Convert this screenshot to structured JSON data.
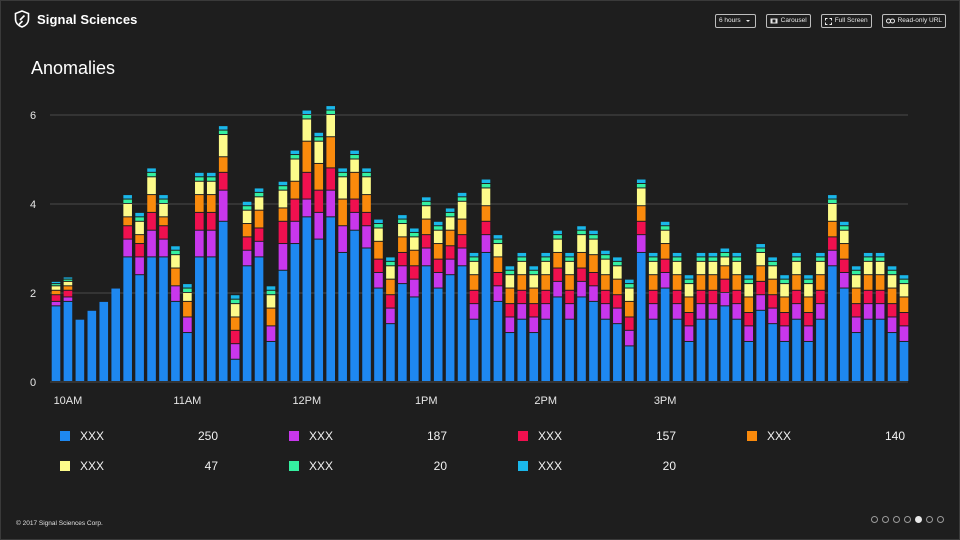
{
  "header": {
    "brand": "Signal Sciences",
    "toolbar": {
      "time_range": "6 hours",
      "carousel": "Carousel",
      "full_screen": "Full Screen",
      "read_only_url": "Read-only URL"
    }
  },
  "title": "Anomalies",
  "chart_data": {
    "type": "bar",
    "stacked": true,
    "title": "Anomalies",
    "xlabel": "",
    "ylabel": "",
    "ylim": [
      0,
      6
    ],
    "yticks": [
      0,
      2,
      4,
      6
    ],
    "grid": true,
    "x_ticks": [
      {
        "label": "10AM",
        "index": 1
      },
      {
        "label": "11AM",
        "index": 11
      },
      {
        "label": "12PM",
        "index": 21
      },
      {
        "label": "1PM",
        "index": 31
      },
      {
        "label": "2PM",
        "index": 41
      },
      {
        "label": "3PM",
        "index": 51
      }
    ],
    "series": [
      {
        "name": "XXX",
        "color": "#1e88f0",
        "values": [
          1.7,
          1.8,
          1.4,
          1.6,
          1.8,
          2.1,
          2.8,
          2.4,
          2.8,
          2.8,
          1.8,
          1.1,
          2.8,
          2.8,
          3.6,
          0.5,
          2.6,
          2.8,
          0.9,
          2.5,
          3.1,
          3.7,
          3.2,
          3.7,
          2.9,
          3.4,
          3.0,
          2.1,
          1.3,
          2.2,
          1.9,
          2.6,
          2.1,
          2.4,
          2.6,
          1.4,
          2.9,
          1.8,
          1.1,
          1.4,
          1.1,
          1.4,
          1.9,
          1.4,
          1.9,
          1.8,
          1.4,
          1.3,
          0.8,
          2.9,
          1.4,
          2.1,
          1.4,
          0.9,
          1.4,
          1.4,
          1.7,
          1.4,
          0.9,
          1.6,
          1.3,
          0.9,
          1.4,
          0.9,
          1.4,
          2.6,
          2.1,
          1.1,
          1.4,
          1.4,
          1.1,
          0.9
        ]
      },
      {
        "name": "XXX",
        "color": "#c837ec",
        "values": [
          0.1,
          0.1,
          0,
          0,
          0,
          0,
          0.4,
          0.4,
          0.6,
          0.4,
          0.35,
          0.35,
          0.6,
          0.6,
          0.7,
          0.35,
          0.35,
          0.35,
          0.35,
          0.6,
          0.5,
          0.4,
          0.6,
          0.6,
          0.6,
          0.4,
          0.5,
          0.35,
          0.35,
          0.4,
          0.4,
          0.4,
          0.35,
          0.35,
          0.4,
          0.35,
          0.4,
          0.35,
          0.35,
          0.35,
          0.35,
          0.35,
          0.35,
          0.35,
          0.35,
          0.35,
          0.35,
          0.35,
          0.35,
          0.4,
          0.35,
          0.35,
          0.35,
          0.35,
          0.35,
          0.35,
          0.3,
          0.35,
          0.35,
          0.35,
          0.35,
          0.35,
          0.35,
          0.35,
          0.35,
          0.35,
          0.35,
          0.35,
          0.35,
          0.35,
          0.35,
          0.35
        ]
      },
      {
        "name": "XXX",
        "color": "#f0104f",
        "values": [
          0.15,
          0.15,
          0,
          0,
          0,
          0,
          0.3,
          0.3,
          0.4,
          0.3,
          0,
          0,
          0.4,
          0.4,
          0.4,
          0.3,
          0.3,
          0.3,
          0,
          0.5,
          0.5,
          0.6,
          0.5,
          0.5,
          0,
          0.3,
          0.3,
          0.3,
          0.3,
          0.3,
          0.3,
          0.3,
          0.3,
          0.3,
          0.3,
          0.3,
          0.3,
          0.3,
          0.3,
          0.3,
          0.3,
          0.3,
          0.3,
          0.3,
          0.3,
          0.3,
          0.3,
          0.3,
          0.3,
          0.3,
          0.3,
          0.3,
          0.3,
          0.3,
          0.3,
          0.3,
          0.3,
          0.3,
          0.3,
          0.3,
          0.3,
          0.3,
          0.3,
          0.3,
          0.3,
          0.3,
          0.3,
          0.3,
          0.3,
          0.3,
          0.3,
          0.3
        ]
      },
      {
        "name": "XXX",
        "color": "#fa8a0c",
        "values": [
          0.1,
          0.1,
          0,
          0,
          0,
          0,
          0.2,
          0.2,
          0.4,
          0.2,
          0.4,
          0.35,
          0.4,
          0.4,
          0.35,
          0.3,
          0.3,
          0.4,
          0.4,
          0.3,
          0.4,
          0.7,
          0.6,
          0.7,
          0.6,
          0.6,
          0.4,
          0.4,
          0.35,
          0.35,
          0.35,
          0.35,
          0.35,
          0.35,
          0.35,
          0.35,
          0.35,
          0.35,
          0.35,
          0.35,
          0.35,
          0.35,
          0.35,
          0.35,
          0.35,
          0.4,
          0.35,
          0.35,
          0.35,
          0.35,
          0.35,
          0.35,
          0.35,
          0.35,
          0.35,
          0.35,
          0.3,
          0.35,
          0.35,
          0.35,
          0.35,
          0.35,
          0.35,
          0.35,
          0.35,
          0.35,
          0.35,
          0.35,
          0.35,
          0.35,
          0.35,
          0.35
        ]
      },
      {
        "name": "XXX",
        "color": "#fdfb8a",
        "values": [
          0.1,
          0.1,
          0,
          0,
          0,
          0,
          0.3,
          0.3,
          0.4,
          0.3,
          0.3,
          0.2,
          0.3,
          0.3,
          0.5,
          0.3,
          0.3,
          0.3,
          0.3,
          0.4,
          0.5,
          0.5,
          0.5,
          0.5,
          0.5,
          0.3,
          0.4,
          0.3,
          0.3,
          0.3,
          0.3,
          0.3,
          0.3,
          0.3,
          0.4,
          0.3,
          0.4,
          0.3,
          0.3,
          0.3,
          0.3,
          0.3,
          0.3,
          0.3,
          0.4,
          0.35,
          0.35,
          0.3,
          0.3,
          0.4,
          0.3,
          0.3,
          0.3,
          0.3,
          0.3,
          0.3,
          0.2,
          0.3,
          0.3,
          0.3,
          0.3,
          0.3,
          0.3,
          0.3,
          0.3,
          0.4,
          0.3,
          0.3,
          0.3,
          0.3,
          0.3,
          0.3
        ]
      },
      {
        "name": "XXX",
        "color": "#35f0a0",
        "values": [
          0.05,
          0.05,
          0,
          0,
          0,
          0,
          0.1,
          0.1,
          0.1,
          0.1,
          0.1,
          0.1,
          0.1,
          0.1,
          0.1,
          0.1,
          0.1,
          0.1,
          0.1,
          0.1,
          0.1,
          0.1,
          0.1,
          0.1,
          0.1,
          0.1,
          0.1,
          0.1,
          0.1,
          0.1,
          0.1,
          0.1,
          0.1,
          0.1,
          0.1,
          0.1,
          0.1,
          0.1,
          0.1,
          0.1,
          0.1,
          0.1,
          0.1,
          0.1,
          0.1,
          0.1,
          0.1,
          0.1,
          0.1,
          0.1,
          0.1,
          0.1,
          0.1,
          0.1,
          0.1,
          0.1,
          0.1,
          0.1,
          0.1,
          0.1,
          0.1,
          0.1,
          0.1,
          0.1,
          0.1,
          0.1,
          0.1,
          0.1,
          0.1,
          0.1,
          0.1,
          0.1
        ]
      },
      {
        "name": "XXX",
        "color": "#1ab7ea",
        "values": [
          0.05,
          0.05,
          0,
          0,
          0,
          0,
          0.1,
          0.1,
          0.1,
          0.1,
          0.1,
          0.1,
          0.1,
          0.1,
          0.1,
          0.1,
          0.1,
          0.1,
          0.1,
          0.1,
          0.1,
          0.1,
          0.1,
          0.1,
          0.1,
          0.1,
          0.1,
          0.1,
          0.1,
          0.1,
          0.1,
          0.1,
          0.1,
          0.1,
          0.1,
          0.1,
          0.1,
          0.1,
          0.1,
          0.1,
          0.1,
          0.1,
          0.1,
          0.1,
          0.1,
          0.1,
          0.1,
          0.1,
          0.1,
          0.1,
          0.1,
          0.1,
          0.1,
          0.1,
          0.1,
          0.1,
          0.1,
          0.1,
          0.1,
          0.1,
          0.1,
          0.1,
          0.1,
          0.1,
          0.1,
          0.1,
          0.1,
          0.1,
          0.1,
          0.1,
          0.1,
          0.1
        ]
      }
    ]
  },
  "legend": [
    {
      "name": "XXX",
      "count": "250",
      "color": "#1e88f0"
    },
    {
      "name": "XXX",
      "count": "187",
      "color": "#c837ec"
    },
    {
      "name": "XXX",
      "count": "157",
      "color": "#f0104f"
    },
    {
      "name": "XXX",
      "count": "140",
      "color": "#fa8a0c"
    },
    {
      "name": "XXX",
      "count": "47",
      "color": "#fdfb8a"
    },
    {
      "name": "XXX",
      "count": "20",
      "color": "#35f0a0"
    },
    {
      "name": "XXX",
      "count": "20",
      "color": "#1ab7ea"
    }
  ],
  "footer": {
    "copyright": "© 2017 Signal Sciences Corp."
  },
  "carousel": {
    "pages": 7,
    "active": 5
  }
}
